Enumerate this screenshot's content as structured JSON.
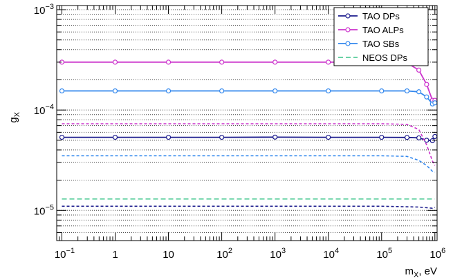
{
  "chart_data": {
    "type": "line",
    "xlabel": "m",
    "xlabel_sub": "X",
    "xlabel_suffix": ", eV",
    "ylabel": "g",
    "ylabel_sub": "X",
    "x_scale": "log",
    "y_scale": "log",
    "xlim": [
      0.08,
      1100000
    ],
    "ylim": [
      5e-06,
      0.0011
    ],
    "grid": "horizontal dotted at minor and major y ticks",
    "legend_position": "top-right",
    "x_ticks": [
      {
        "value": 0.1,
        "base": "10",
        "exp": "−1"
      },
      {
        "value": 1,
        "label": "1"
      },
      {
        "value": 10,
        "label": "10"
      },
      {
        "value": 100,
        "base": "10",
        "exp": "2"
      },
      {
        "value": 1000,
        "base": "10",
        "exp": "3"
      },
      {
        "value": 10000,
        "base": "10",
        "exp": "4"
      },
      {
        "value": 100000,
        "base": "10",
        "exp": "5"
      },
      {
        "value": 1000000,
        "base": "10",
        "exp": "6"
      }
    ],
    "y_ticks": [
      {
        "value": 1e-05,
        "base": "10",
        "exp": "−5"
      },
      {
        "value": 0.0001,
        "base": "10",
        "exp": "−4"
      },
      {
        "value": 0.001,
        "base": "10",
        "exp": "−3"
      }
    ],
    "series": [
      {
        "name": "TAO DPs",
        "color": "#1a1a8c",
        "style": "solid",
        "markers": true,
        "x": [
          0.1,
          1,
          10,
          100,
          1000,
          10000,
          100000,
          300000,
          500000,
          700000,
          900000,
          1000000
        ],
        "y": [
          5.35e-05,
          5.35e-05,
          5.35e-05,
          5.35e-05,
          5.37e-05,
          5.35e-05,
          5.35e-05,
          5.33e-05,
          5.28e-05,
          5e-05,
          4.95e-05,
          5.45e-05
        ]
      },
      {
        "name": "TAO ALPs",
        "color": "#cc33cc",
        "style": "solid",
        "markers": true,
        "x": [
          0.1,
          1,
          10,
          100,
          1000,
          10000,
          100000,
          300000,
          500000,
          700000,
          900000,
          1000000
        ],
        "y": [
          0.0003,
          0.0003,
          0.0003,
          0.0003,
          0.0003,
          0.0003,
          0.0003,
          0.000295,
          0.00025,
          0.00018,
          0.000125,
          0.000125
        ]
      },
      {
        "name": "TAO SBs",
        "color": "#3388ee",
        "style": "solid",
        "markers": true,
        "x": [
          0.1,
          1,
          10,
          100,
          1000,
          10000,
          100000,
          300000,
          500000,
          700000,
          900000,
          1000000
        ],
        "y": [
          0.000155,
          0.000155,
          0.000155,
          0.000155,
          0.000155,
          0.000155,
          0.000155,
          0.000155,
          0.000152,
          0.000135,
          0.000115,
          0.000118
        ]
      },
      {
        "name": "NEOS DPs",
        "color": "#55cc99",
        "style": "dashed",
        "markers": false,
        "x": [
          0.1,
          1000000
        ],
        "y": [
          1.3e-05,
          1.3e-05
        ]
      },
      {
        "color": "#cc33cc",
        "style": "dashed",
        "markers": false,
        "x": [
          0.1,
          100000,
          300000,
          500000,
          700000,
          900000,
          1000000
        ],
        "y": [
          7.3e-05,
          7.3e-05,
          7.2e-05,
          6.4e-05,
          4.5e-05,
          3.1e-05,
          2.8e-05
        ]
      },
      {
        "color": "#3388ee",
        "style": "dashed",
        "markers": false,
        "x": [
          0.1,
          100000,
          300000,
          500000,
          700000,
          900000,
          1000000
        ],
        "y": [
          3.5e-05,
          3.5e-05,
          3.45e-05,
          3.15e-05,
          2.8e-05,
          2.45e-05,
          2.4e-05
        ]
      },
      {
        "color": "#1a1a8c",
        "style": "dashed",
        "markers": false,
        "x": [
          0.1,
          100000,
          500000,
          900000,
          1000000
        ],
        "y": [
          1.1e-05,
          1.1e-05,
          1.08e-05,
          1.05e-05,
          1.07e-05
        ]
      }
    ]
  }
}
